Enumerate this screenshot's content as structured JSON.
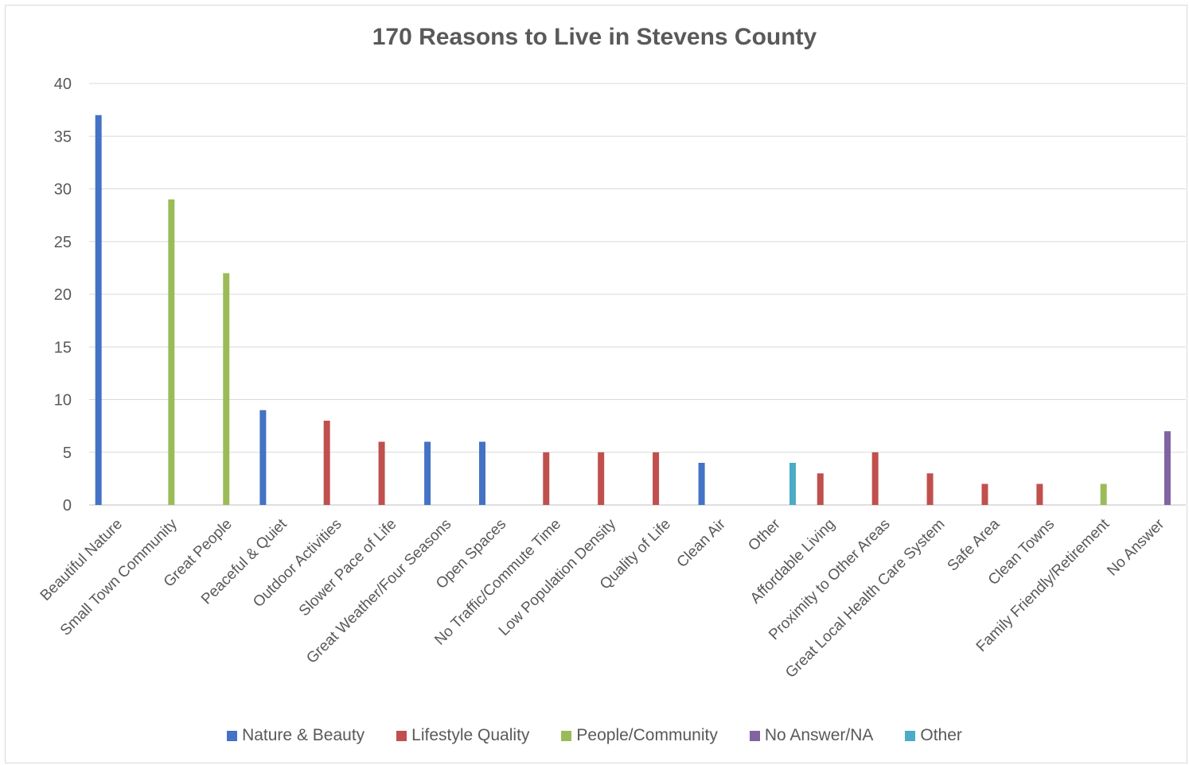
{
  "chart_data": {
    "type": "bar",
    "title": "170 Reasons to Live in Stevens County",
    "xlabel": "",
    "ylabel": "",
    "ylim": [
      0,
      40
    ],
    "yticks": [
      0,
      5,
      10,
      15,
      20,
      25,
      30,
      35,
      40
    ],
    "grid": true,
    "legend_position": "bottom",
    "categories": [
      "Beautiful Nature",
      "Small Town Community",
      "Great People",
      "Peaceful & Quiet",
      "Outdoor Activities",
      "Slower Pace of Life",
      "Great Weather/Four Seasons",
      "Open Spaces",
      "No Traffic/Commute Time",
      "Low Population Density",
      "Quality of Life",
      "Clean Air",
      "Other",
      "Affordable Living",
      "Proximity to Other Areas",
      "Great Local Health Care System",
      "Safe Area",
      "Clean Towns",
      "Family Friendly/Retirement",
      "No Answer"
    ],
    "series": [
      {
        "name": "Nature & Beauty",
        "color": "#4472C4",
        "values": [
          37,
          null,
          null,
          9,
          null,
          null,
          6,
          6,
          null,
          null,
          null,
          4,
          null,
          null,
          null,
          null,
          null,
          null,
          null,
          null
        ]
      },
      {
        "name": "Lifestyle Quality",
        "color": "#C0504D",
        "values": [
          null,
          null,
          null,
          null,
          8,
          6,
          null,
          null,
          5,
          5,
          5,
          null,
          null,
          3,
          5,
          3,
          2,
          2,
          null,
          null
        ]
      },
      {
        "name": "People/Community",
        "color": "#9BBB59",
        "values": [
          null,
          29,
          22,
          null,
          null,
          null,
          null,
          null,
          null,
          null,
          null,
          null,
          null,
          null,
          null,
          null,
          null,
          null,
          2,
          null
        ]
      },
      {
        "name": "No Answer/NA",
        "color": "#8064A2",
        "values": [
          null,
          null,
          null,
          null,
          null,
          null,
          null,
          null,
          null,
          null,
          null,
          null,
          null,
          null,
          null,
          null,
          null,
          null,
          null,
          7
        ]
      },
      {
        "name": "Other",
        "color": "#4BACC6",
        "values": [
          null,
          null,
          null,
          null,
          null,
          null,
          null,
          null,
          null,
          null,
          null,
          null,
          4,
          null,
          null,
          null,
          null,
          null,
          null,
          null
        ]
      }
    ]
  }
}
